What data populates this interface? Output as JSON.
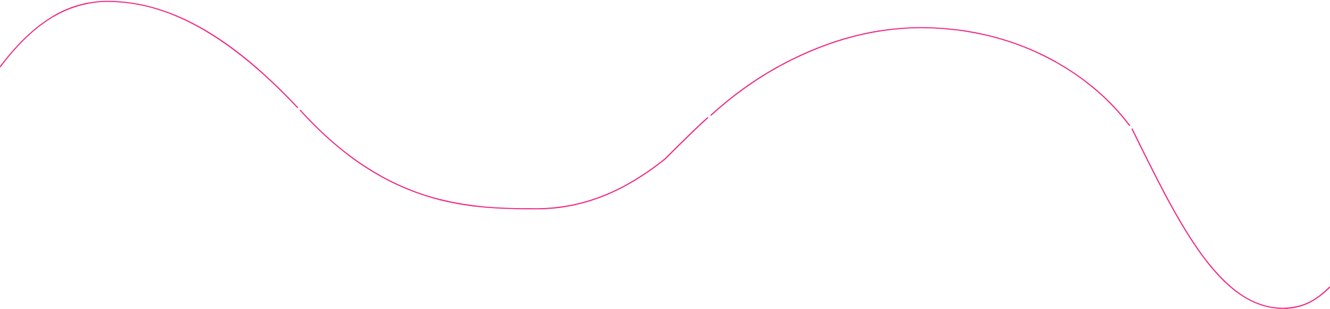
{
  "decoration": {
    "name": "wave-line",
    "stroke_color": "#ee1f7e",
    "background": "#ffffff"
  }
}
